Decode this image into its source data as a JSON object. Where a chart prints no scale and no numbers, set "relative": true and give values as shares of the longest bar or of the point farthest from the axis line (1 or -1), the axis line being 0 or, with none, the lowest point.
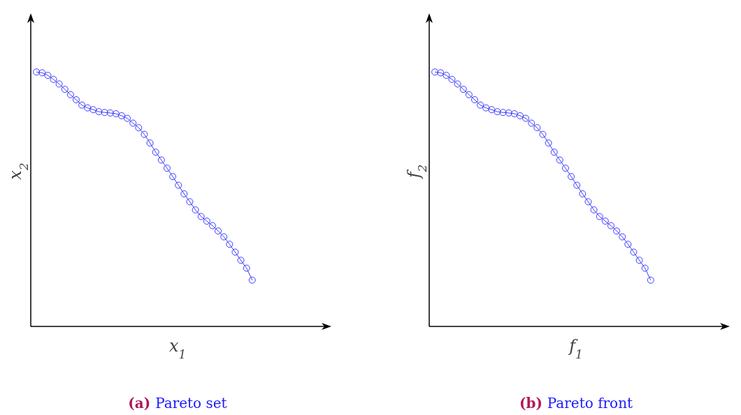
{
  "chart_data": [
    {
      "type": "line",
      "xlabel": "x$_{1}$",
      "ylabel": "x$_{2}$",
      "annotations": [
        "(a) Pareto set"
      ],
      "relative": true,
      "marker": "circle",
      "line_style": "solid",
      "categories": [
        null,
        null,
        null,
        null,
        null,
        null,
        null,
        null,
        null,
        null,
        null,
        null,
        null,
        null,
        null,
        null,
        null,
        null,
        null,
        null,
        null,
        null,
        null,
        null,
        null,
        null,
        null,
        null,
        null,
        null,
        null,
        null,
        null,
        null,
        null,
        null,
        null,
        null,
        null
      ],
      "series": [
        {
          "color": "#3b3bff",
          "values": [
            1,
            0.997,
            0.987,
            0.971,
            0.953,
            0.932,
            0.911,
            0.891,
            0.87,
            0.859,
            0.852,
            0.844,
            0.841,
            0.839,
            0.836,
            0.828,
            0.818,
            0.799,
            0.781,
            0.755,
            0.721,
            0.685,
            0.654,
            0.622,
            0.589,
            0.555,
            0.521,
            0.49,
            0.458,
            0.432,
            0.414,
            0.396,
            0.375,
            0.352,
            0.323,
            0.292,
            0.26,
            0.229,
            0.182
          ]
        }
      ]
    },
    {
      "type": "line",
      "xlabel": "f$_{1}$",
      "ylabel": "f$_{2}$",
      "annotations": [
        "(b) Pareto front"
      ],
      "relative": true,
      "marker": "circle",
      "line_style": "solid",
      "categories": [
        null,
        null,
        null,
        null,
        null,
        null,
        null,
        null,
        null,
        null,
        null,
        null,
        null,
        null,
        null,
        null,
        null,
        null,
        null,
        null,
        null,
        null,
        null,
        null,
        null,
        null,
        null,
        null,
        null,
        null,
        null,
        null,
        null,
        null,
        null,
        null,
        null,
        null,
        null
      ],
      "series": [
        {
          "color": "#3b3bff",
          "values": [
            1,
            0.997,
            0.987,
            0.971,
            0.953,
            0.932,
            0.911,
            0.891,
            0.87,
            0.859,
            0.852,
            0.844,
            0.841,
            0.839,
            0.836,
            0.828,
            0.818,
            0.799,
            0.781,
            0.755,
            0.721,
            0.685,
            0.654,
            0.622,
            0.589,
            0.555,
            0.521,
            0.49,
            0.458,
            0.432,
            0.414,
            0.396,
            0.375,
            0.352,
            0.323,
            0.292,
            0.26,
            0.229,
            0.182
          ]
        }
      ]
    }
  ]
}
